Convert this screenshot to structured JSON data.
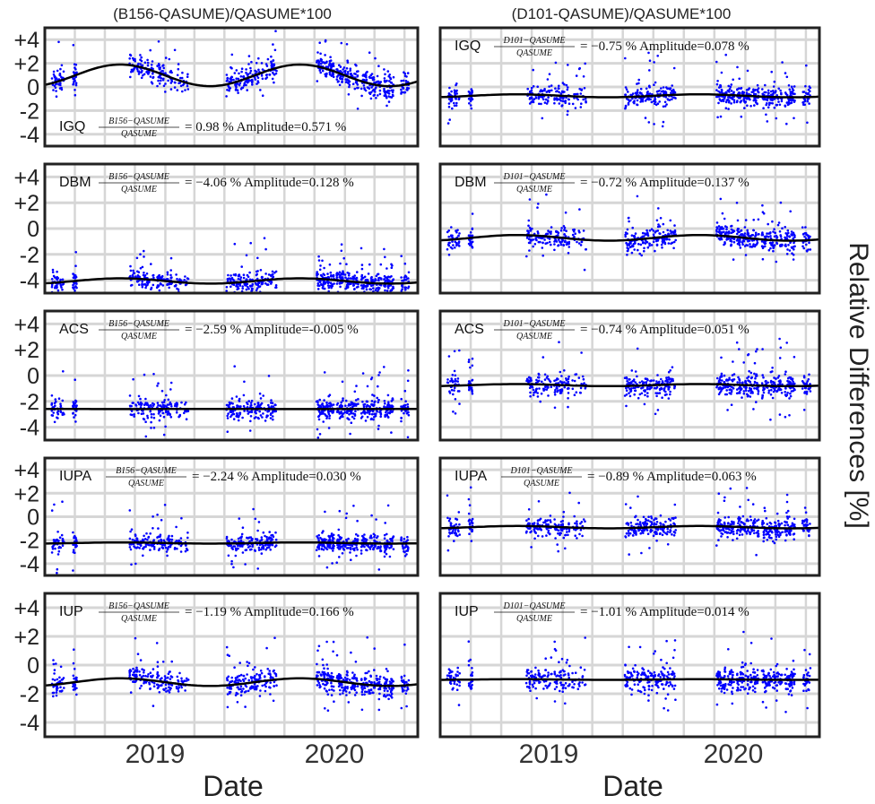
{
  "figure": {
    "ylabel": "Relative Differences [%]",
    "xlabel": "Date",
    "yticks": [
      "+4",
      "+2",
      "0",
      "-2",
      "-4"
    ],
    "xticks": [
      "2019",
      "2020"
    ]
  },
  "columns": [
    {
      "title": "(B156-QASUME)/QASUME*100",
      "ratio_num": "B156−QASUME",
      "ratio_den": "QASUME",
      "panels": [
        {
          "station": "IGQ",
          "mean": "0.98",
          "amplitude": "0.571",
          "mean_text": "= 0.98 % Amplitude=0.571 %"
        },
        {
          "station": "DBM",
          "mean": "−4.06",
          "amplitude": "0.128",
          "mean_text": "= −4.06 % Amplitude=0.128 %"
        },
        {
          "station": "ACS",
          "mean": "−2.59",
          "amplitude": "-0.005",
          "mean_text": "= −2.59 % Amplitude=-0.005 %"
        },
        {
          "station": "IUPA",
          "mean": "−2.24",
          "amplitude": "0.030",
          "mean_text": "= −2.24 % Amplitude=0.030 %"
        },
        {
          "station": "IUP",
          "mean": "−1.19",
          "amplitude": "0.166",
          "mean_text": "= −1.19 % Amplitude=0.166 %"
        }
      ]
    },
    {
      "title": "(D101-QASUME)/QASUME*100",
      "ratio_num": "D101−QASUME",
      "ratio_den": "QASUME",
      "panels": [
        {
          "station": "IGQ",
          "mean": "−0.75",
          "amplitude": "0.078",
          "mean_text": "= −0.75 % Amplitude=0.078 %"
        },
        {
          "station": "DBM",
          "mean": "−0.72",
          "amplitude": "0.137",
          "mean_text": "= −0.72 % Amplitude=0.137 %"
        },
        {
          "station": "ACS",
          "mean": "−0.74",
          "amplitude": "0.051",
          "mean_text": "= −0.74 % Amplitude=0.051 %"
        },
        {
          "station": "IUPA",
          "mean": "−0.89",
          "amplitude": "0.063",
          "mean_text": "= −0.89 % Amplitude=0.063 %"
        },
        {
          "station": "IUP",
          "mean": "−1.01",
          "amplitude": "0.014",
          "mean_text": "= −1.01 % Amplitude=0.014 %"
        }
      ]
    }
  ],
  "chart_data": {
    "type": "scatter",
    "xlabel": "Date",
    "ylabel": "Relative Differences [%]",
    "ylim": [
      -5,
      5
    ],
    "xlim": [
      "2018-06",
      "2020-06"
    ],
    "yticks": [
      4,
      2,
      0,
      -2,
      -4
    ],
    "xticks": [
      "2019",
      "2020"
    ],
    "grid": true,
    "point_color": "#0000ff",
    "fit_color": "#000000",
    "measurement_clusters": [
      {
        "start": "2018-06-15",
        "end": "2018-07-10",
        "count": 40
      },
      {
        "start": "2018-07-28",
        "end": "2018-08-05",
        "count": 25
      },
      {
        "start": "2018-11-20",
        "end": "2019-01-10",
        "count": 70
      },
      {
        "start": "2019-01-15",
        "end": "2019-02-15",
        "count": 55
      },
      {
        "start": "2019-02-20",
        "end": "2019-03-20",
        "count": 25
      },
      {
        "start": "2019-06-05",
        "end": "2019-07-30",
        "count": 90
      },
      {
        "start": "2019-08-01",
        "end": "2019-09-15",
        "count": 70
      },
      {
        "start": "2019-12-05",
        "end": "2020-01-10",
        "count": 80
      },
      {
        "start": "2020-01-15",
        "end": "2020-02-28",
        "count": 90
      },
      {
        "start": "2020-03-05",
        "end": "2020-04-15",
        "count": 80
      },
      {
        "start": "2020-04-20",
        "end": "2020-05-10",
        "count": 50
      },
      {
        "start": "2020-05-25",
        "end": "2020-06-10",
        "count": 30
      }
    ],
    "panels": [
      {
        "column": "B156",
        "station": "IGQ",
        "mean": 0.98,
        "amplitude": 0.571,
        "spread": 0.9
      },
      {
        "column": "B156",
        "station": "DBM",
        "mean": -4.06,
        "amplitude": 0.128,
        "spread": 0.7
      },
      {
        "column": "B156",
        "station": "ACS",
        "mean": -2.59,
        "amplitude": -0.005,
        "spread": 0.75
      },
      {
        "column": "B156",
        "station": "IUPA",
        "mean": -2.24,
        "amplitude": 0.03,
        "spread": 0.7
      },
      {
        "column": "B156",
        "station": "IUP",
        "mean": -1.19,
        "amplitude": 0.166,
        "spread": 0.75
      },
      {
        "column": "D101",
        "station": "IGQ",
        "mean": -0.75,
        "amplitude": 0.078,
        "spread": 0.8
      },
      {
        "column": "D101",
        "station": "DBM",
        "mean": -0.72,
        "amplitude": 0.137,
        "spread": 0.8
      },
      {
        "column": "D101",
        "station": "ACS",
        "mean": -0.74,
        "amplitude": 0.051,
        "spread": 0.8
      },
      {
        "column": "D101",
        "station": "IUPA",
        "mean": -0.89,
        "amplitude": 0.063,
        "spread": 0.8
      },
      {
        "column": "D101",
        "station": "IUP",
        "mean": -1.01,
        "amplitude": 0.014,
        "spread": 0.8
      }
    ]
  }
}
